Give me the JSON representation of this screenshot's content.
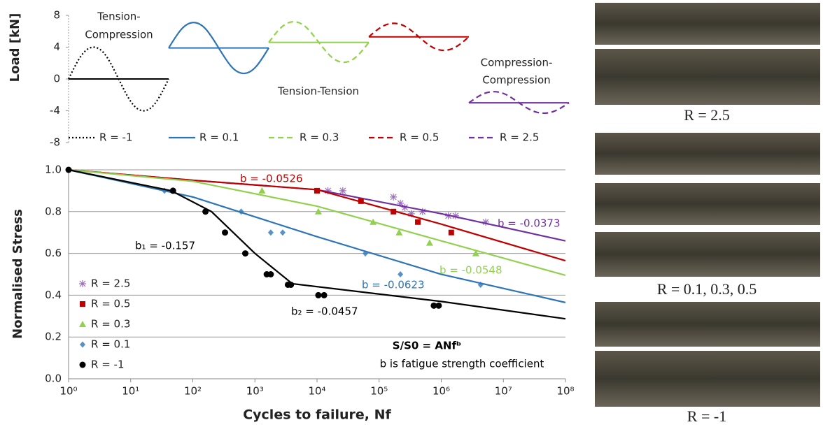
{
  "chart_data": [
    {
      "type": "line",
      "ylabel": "Load [kN]",
      "ylim": [
        -8,
        8
      ],
      "yticks": [
        8,
        4,
        0,
        -4,
        -8
      ],
      "annotations": [
        [
          "Tension-",
          "Compression"
        ],
        [
          "Tension-Tension"
        ],
        [
          "Compression-",
          "Compression"
        ]
      ],
      "series": [
        {
          "name": "R = -1",
          "color": "#000000",
          "dash": "dotted",
          "values": [
            0,
            4,
            0,
            -4,
            0
          ]
        },
        {
          "name": "R = 0.1",
          "color": "#2e75b6",
          "dash": "solid",
          "values": [
            3.9,
            7.1,
            3.9,
            0.7,
            3.9
          ]
        },
        {
          "name": "R = 0.3",
          "color": "#92d050",
          "dash": "dashed",
          "values": [
            4.6,
            7.2,
            4.6,
            2.1,
            4.6
          ]
        },
        {
          "name": "R = 0.5",
          "color": "#c00000",
          "dash": "dashed",
          "values": [
            5.3,
            7,
            5.3,
            3.6,
            5.3
          ]
        },
        {
          "name": "R = 2.5",
          "color": "#7030a0",
          "dash": "dashed",
          "values": [
            -3,
            -1.6,
            -3,
            -4.3,
            -3
          ]
        }
      ]
    },
    {
      "type": "scatter",
      "x_scale": "log",
      "xlabel": "Cycles to failure, Nf",
      "ylabel": "Normalised Stress",
      "xlim": [
        1,
        100000000
      ],
      "ylim": [
        0,
        1
      ],
      "xticks": [
        {
          "value": 1,
          "label": "10⁰"
        },
        {
          "value": 10,
          "label": "10¹"
        },
        {
          "value": 100,
          "label": "10²"
        },
        {
          "value": 1000,
          "label": "10³"
        },
        {
          "value": 10000,
          "label": "10⁴"
        },
        {
          "value": 100000,
          "label": "10⁵"
        },
        {
          "value": 1000000,
          "label": "10⁶"
        },
        {
          "value": 10000000,
          "label": "10⁷"
        },
        {
          "value": 100000000,
          "label": "10⁸"
        }
      ],
      "yticks": [
        {
          "value": 0,
          "label": "0.0"
        },
        0.2,
        0.4,
        0.6,
        0.8,
        {
          "value": 1,
          "label": "1.0"
        }
      ],
      "grid": true,
      "legend": "lower left",
      "series": [
        {
          "name": "R = 2.5",
          "color": "#7030a0",
          "marker": "asterisk",
          "x": [
            15000,
            26000,
            170000,
            220000,
            260000,
            330000,
            500000,
            1300000,
            1700000,
            5200000
          ],
          "values": [
            0.9,
            0.9,
            0.87,
            0.84,
            0.82,
            0.79,
            0.8,
            0.78,
            0.78,
            0.75
          ],
          "fit": {
            "x": [
              1,
              100,
              10000,
              1000000,
              100000000
            ],
            "values": [
              1,
              0.95,
              0.905,
              0.79,
              0.66
            ]
          }
        },
        {
          "name": "R = 0.5",
          "color": "#c00000",
          "marker": "square",
          "x": [
            10000,
            51000,
            170000,
            420000,
            1450000
          ],
          "values": [
            0.9,
            0.85,
            0.8,
            0.75,
            0.7
          ],
          "fit": {
            "x": [
              1,
              100,
              10000,
              1000000,
              100000000
            ],
            "values": [
              1,
              0.95,
              0.905,
              0.74,
              0.565
            ]
          }
        },
        {
          "name": "R = 0.3",
          "color": "#92d050",
          "marker": "triangle",
          "x": [
            1300,
            10500,
            80000,
            210000,
            650000,
            3600000
          ],
          "values": [
            0.9,
            0.8,
            0.75,
            0.7,
            0.65,
            0.6
          ],
          "fit": {
            "x": [
              1,
              100,
              10000,
              1000000,
              100000000
            ],
            "values": [
              1,
              0.945,
              0.826,
              0.66,
              0.495
            ]
          }
        },
        {
          "name": "R = 0.1",
          "color": "#2e75b6",
          "marker": "diamond",
          "x": [
            35,
            600,
            1800,
            2800,
            60000,
            220000,
            4300000
          ],
          "values": [
            0.9,
            0.8,
            0.7,
            0.7,
            0.6,
            0.5,
            0.45
          ],
          "fit": {
            "x": [
              1,
              100,
              10000,
              1000000,
              100000000
            ],
            "values": [
              1,
              0.87,
              0.68,
              0.5,
              0.365
            ]
          }
        },
        {
          "name": "R = -1",
          "color": "#000000",
          "marker": "circle",
          "x": [
            1,
            48,
            160,
            330,
            700,
            1550,
            1800,
            3400,
            3800,
            10500,
            13000,
            760000,
            910000
          ],
          "values": [
            1,
            0.9,
            0.8,
            0.7,
            0.6,
            0.5,
            0.5,
            0.45,
            0.45,
            0.4,
            0.4,
            0.35,
            0.35
          ],
          "fit": {
            "x": [
              1,
              45,
              200,
              1000,
              4000,
              1000000,
              100000000
            ],
            "values": [
              1,
              0.9,
              0.8,
              0.6,
              0.455,
              0.37,
              0.287
            ]
          }
        }
      ],
      "annotations": [
        {
          "text": "b = -0.0526",
          "color": "#c00000"
        },
        {
          "text": "b = -0.0373",
          "color": "#7030a0"
        },
        {
          "text": "b = -0.0548",
          "color": "#92d050"
        },
        {
          "text": "b = -0.0623",
          "color": "#2e75b6"
        },
        {
          "text": "b₁ = -0.157",
          "color": "#000000"
        },
        {
          "text": "b₂ = -0.0457",
          "color": "#000000"
        },
        {
          "text": "S/S0 = ANfᵇ",
          "color": "#000000"
        },
        {
          "text": "b is fatigue strength coefficient",
          "color": "#000000"
        }
      ]
    }
  ],
  "photos": [
    {
      "caption": "R = 2.5"
    },
    {
      "caption": "R = 0.1, 0.3, 0.5"
    },
    {
      "caption": "R = -1"
    }
  ]
}
